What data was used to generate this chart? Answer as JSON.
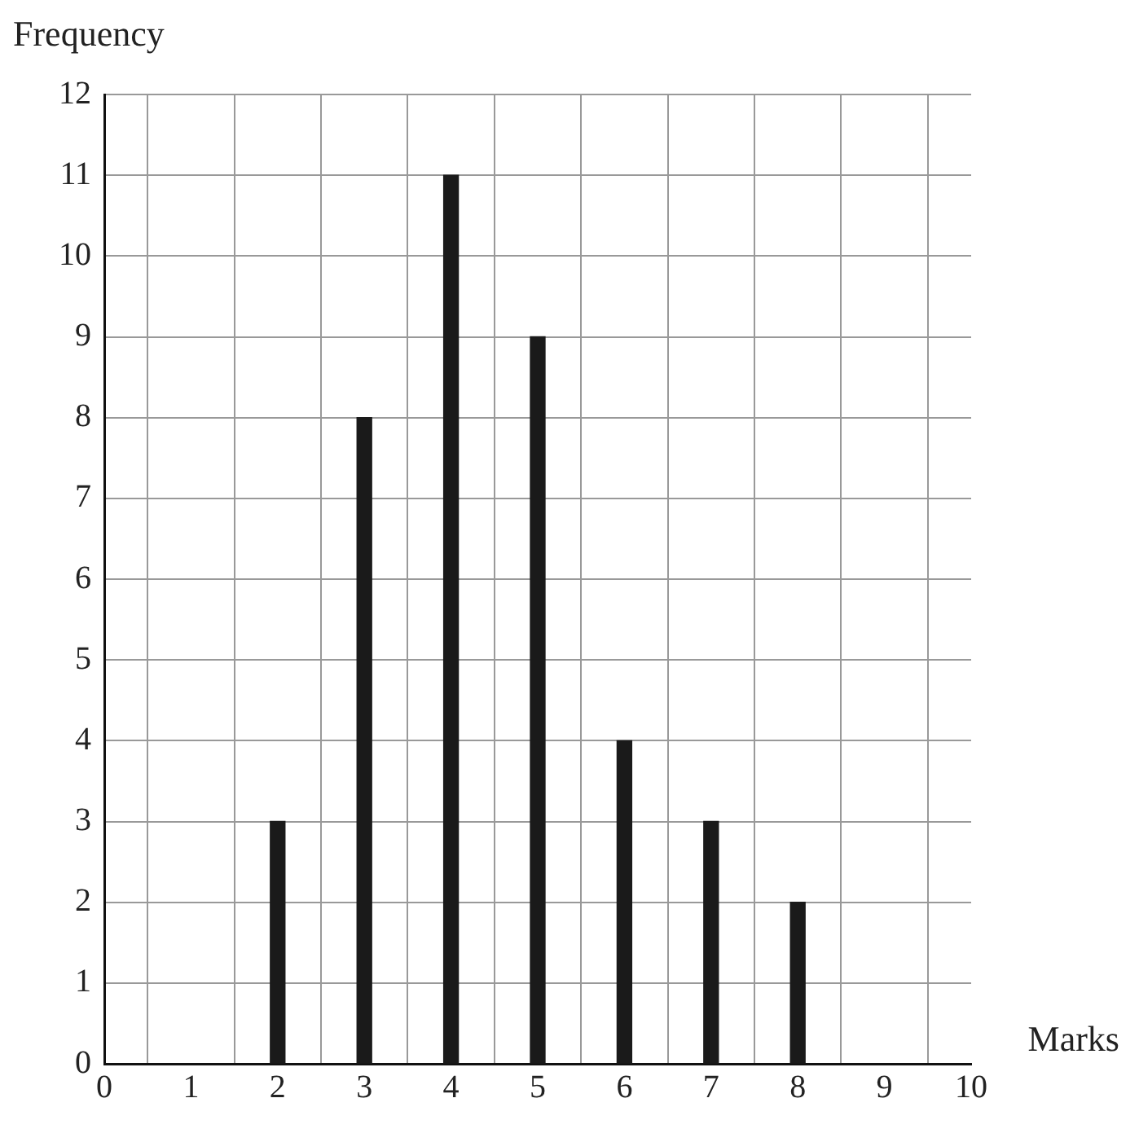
{
  "chart_data": {
    "type": "bar",
    "xlabel": "Marks",
    "ylabel": "Frequency",
    "x": [
      2,
      3,
      4,
      5,
      6,
      7,
      8
    ],
    "values": [
      3,
      8,
      11,
      9,
      4,
      3,
      2
    ],
    "color": "#1a1a1a",
    "xlim": [
      0,
      10
    ],
    "xticks": [
      0,
      1,
      2,
      3,
      4,
      5,
      6,
      7,
      8,
      9,
      10
    ],
    "ylim": [
      0,
      12
    ],
    "yticks": [
      0,
      1,
      2,
      3,
      4,
      5,
      6,
      7,
      8,
      9,
      10,
      11,
      12
    ],
    "grid": true
  }
}
